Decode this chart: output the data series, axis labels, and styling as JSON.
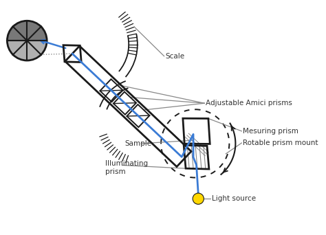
{
  "bg_color": "#ffffff",
  "line_color": "#1a1a1a",
  "blue_color": "#3a7bd5",
  "gray_color": "#888888",
  "dark_gray": "#555555",
  "light_source_color": "#FFD700",
  "labels": {
    "scale": "Scale",
    "amici": "Adjustable Amici prisms",
    "measuring": "Mesuring prism",
    "rotatable": "Rotable prism mount",
    "sample": "Sample",
    "illuminating": "Illuminating\nprism",
    "light": "Light source"
  },
  "figsize": [
    4.74,
    3.42
  ],
  "dpi": 100
}
